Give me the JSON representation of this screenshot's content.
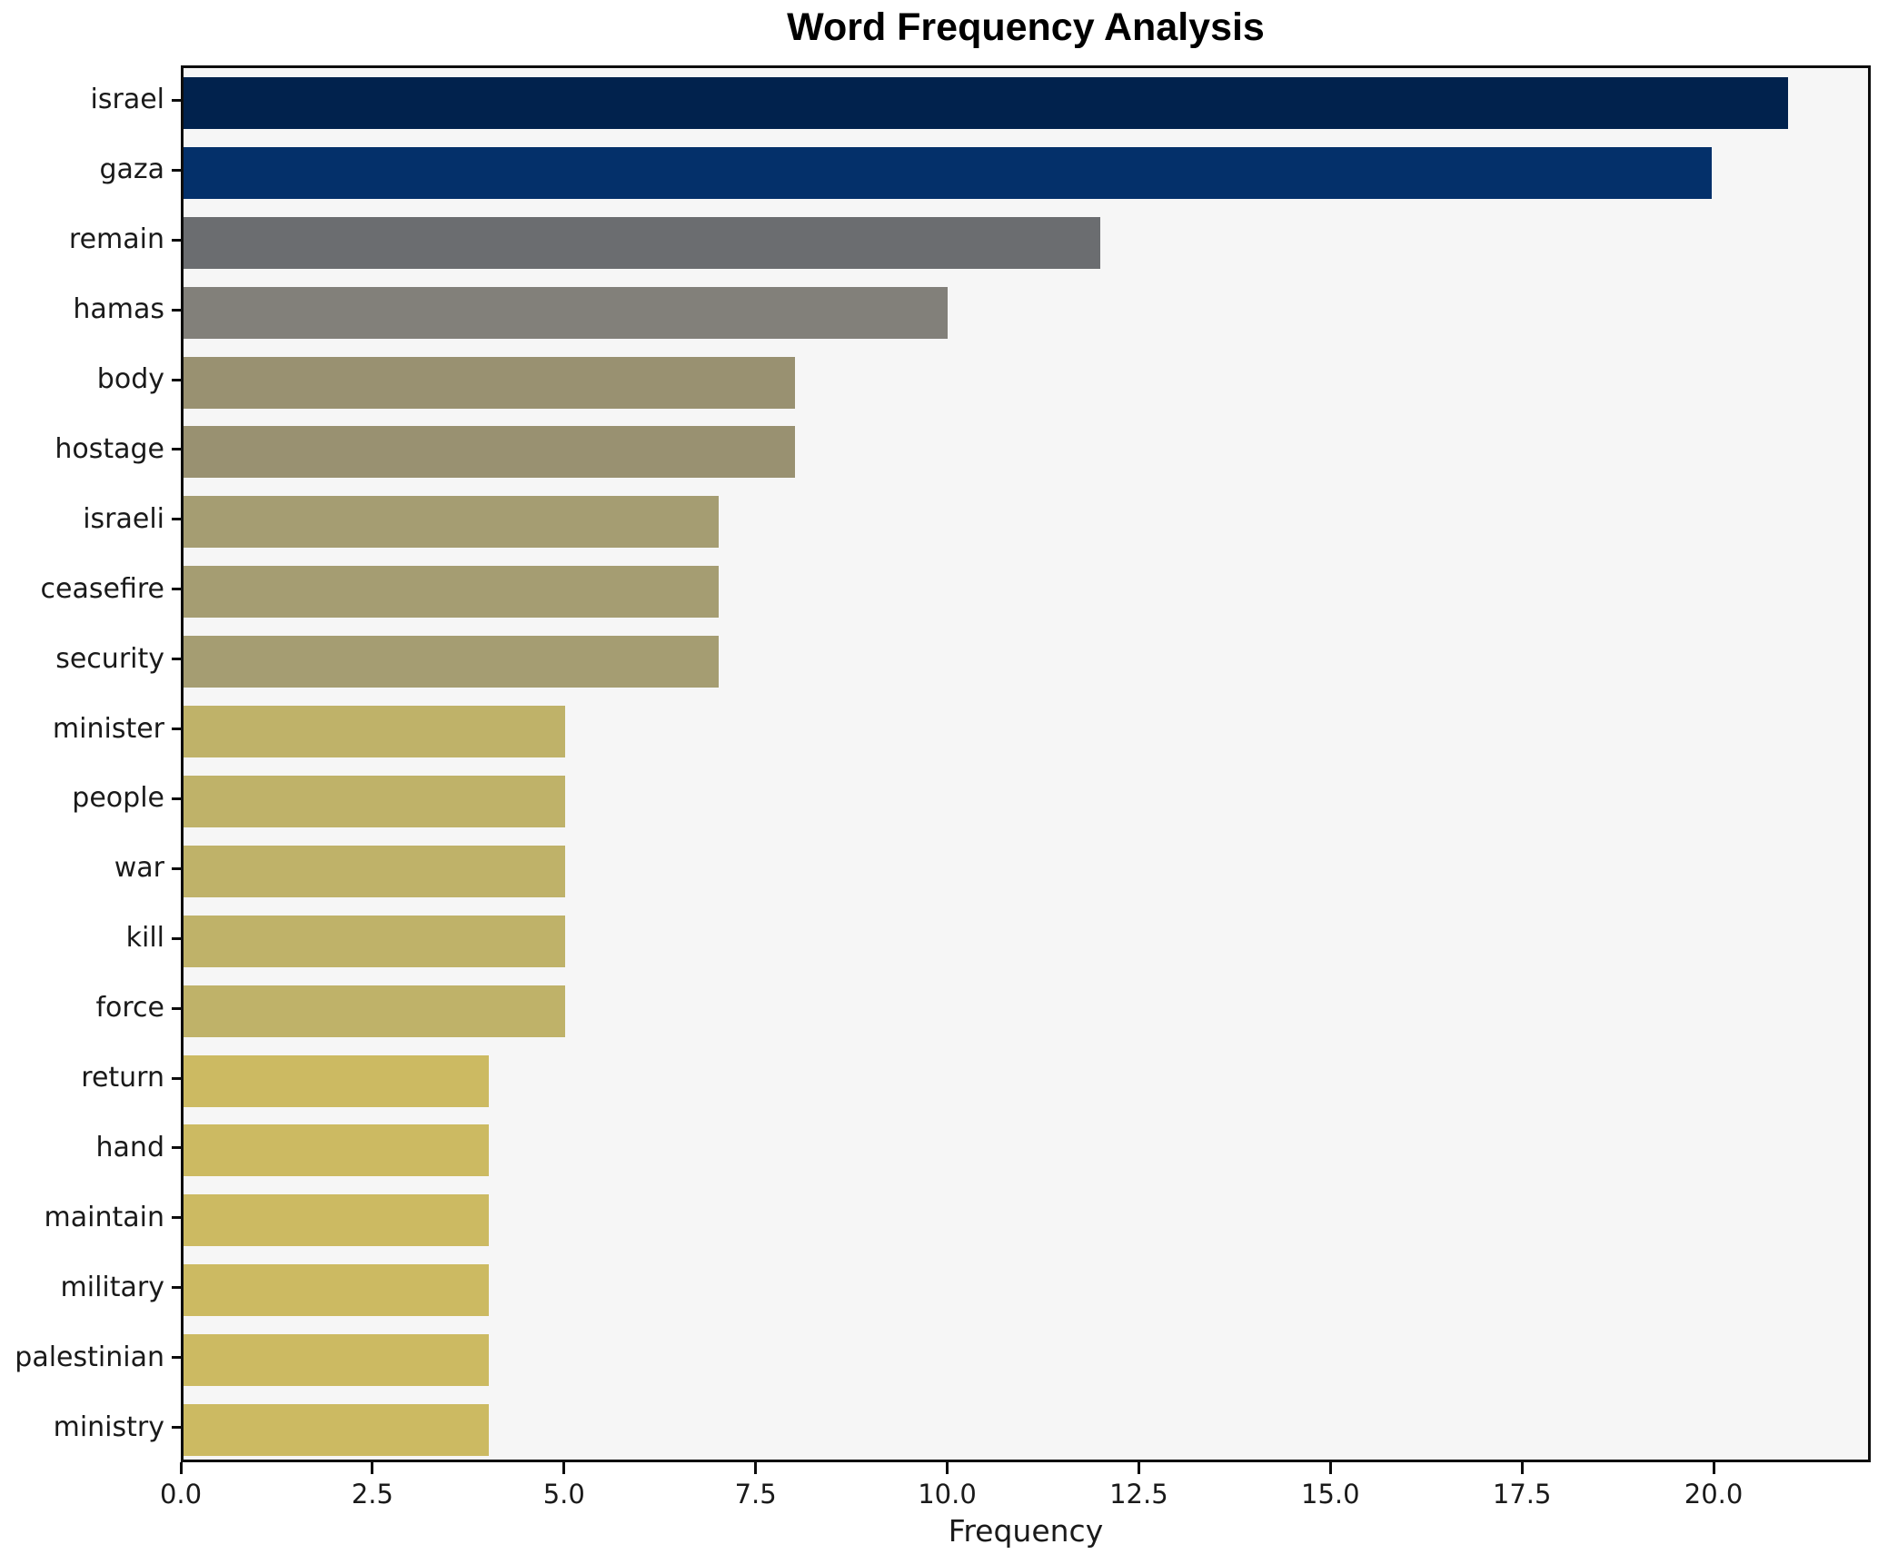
{
  "chart_data": {
    "type": "bar",
    "orientation": "horizontal",
    "title": "Word Frequency Analysis",
    "xlabel": "Frequency",
    "ylabel": "",
    "categories": [
      "israel",
      "gaza",
      "remain",
      "hamas",
      "body",
      "hostage",
      "israeli",
      "ceasefire",
      "security",
      "minister",
      "people",
      "war",
      "kill",
      "force",
      "return",
      "hand",
      "maintain",
      "military",
      "palestinian",
      "ministry"
    ],
    "values": [
      21,
      20,
      12,
      10,
      8,
      8,
      7,
      7,
      7,
      5,
      5,
      5,
      5,
      5,
      4,
      4,
      4,
      4,
      4,
      4
    ],
    "bar_colors": [
      "#01224d",
      "#04306a",
      "#6b6d70",
      "#82807a",
      "#999171",
      "#999171",
      "#a59d72",
      "#a59d72",
      "#a59d72",
      "#bfb269",
      "#bfb269",
      "#bfb269",
      "#bfb269",
      "#bfb269",
      "#ccba62",
      "#ccba62",
      "#ccba62",
      "#ccba62",
      "#ccba62",
      "#ccba62"
    ],
    "xlim": [
      0,
      22.05
    ],
    "xticks": [
      0.0,
      2.5,
      5.0,
      7.5,
      10.0,
      12.5,
      15.0,
      17.5,
      20.0
    ],
    "xtick_labels": [
      "0.0",
      "2.5",
      "5.0",
      "7.5",
      "10.0",
      "12.5",
      "15.0",
      "17.5",
      "20.0"
    ],
    "grid": "off",
    "legend": "none",
    "plot_background": "#f6f6f6",
    "figure_background": "#ffffff",
    "spine_color": "#0d0d0d"
  }
}
